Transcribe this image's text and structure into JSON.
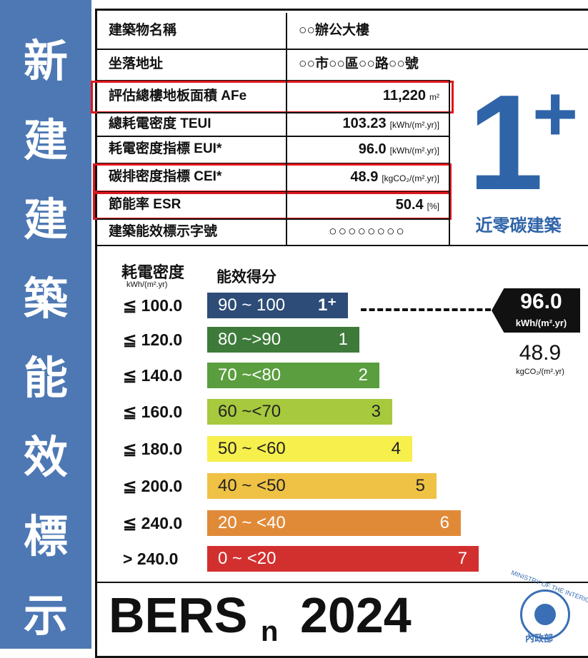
{
  "side_title": [
    "新",
    "建",
    "建",
    "築",
    "能",
    "效",
    "標",
    "示"
  ],
  "table": {
    "rows": [
      {
        "label": "建築物名稱",
        "value": "○○辦公大樓"
      },
      {
        "label": "坐落地址",
        "value": "○○市○○區○○路○○號"
      },
      {
        "label": "評估總樓地板面積 AFe",
        "value": "11,220",
        "unit": "m²",
        "highlight": true
      },
      {
        "label": "總耗電密度 TEUI",
        "value": "103.23",
        "unit": "[kWh/(m².yr)]"
      },
      {
        "label": "耗電密度指標 EUI*",
        "value": "96.0",
        "unit": "[kWh/(m².yr)]"
      },
      {
        "label": "碳排密度指標 CEI*",
        "value": "48.9",
        "unit": "[kgCO₂/(m².yr)]",
        "highlight": true
      },
      {
        "label": "節能率 ESR",
        "value": "50.4",
        "unit": "[%]",
        "highlight": true
      },
      {
        "label": "建築能效標示字號",
        "value": "○○○○○○○○"
      }
    ]
  },
  "badge": {
    "number": "1",
    "sup": "+",
    "caption": "近零碳建築"
  },
  "scale": {
    "eui_header": "耗電密度",
    "eui_unit": "kWh/(m².yr)",
    "score_header": "能效得分",
    "levels": [
      {
        "limit": "≦ 100.0",
        "range": "90 ~ 100",
        "grade": "1⁺",
        "color": "#2d4c77"
      },
      {
        "limit": "≦ 120.0",
        "range": "80 ~>90",
        "grade": "1",
        "color": "#3e7b3a"
      },
      {
        "limit": "≦ 140.0",
        "range": "70 ~<80",
        "grade": "2",
        "color": "#5a9e3f"
      },
      {
        "limit": "≦ 160.0",
        "range": "60 ~<70",
        "grade": "3",
        "color": "#a6c93e"
      },
      {
        "limit": "≦ 180.0",
        "range": "50 ~ <60",
        "grade": "4",
        "color": "#f6ef4c"
      },
      {
        "limit": "≦ 200.0",
        "range": "40 ~ <50",
        "grade": "5",
        "color": "#efc245"
      },
      {
        "limit": "≦ 240.0",
        "range": "20 ~ <40",
        "grade": "6",
        "color": "#e08a38"
      },
      {
        "limit": "> 240.0",
        "range": "0 ~ <20",
        "grade": "7",
        "color": "#d2302f"
      }
    ],
    "pointer": {
      "value": "96.0",
      "unit": "kWh/(m².yr)"
    },
    "carbon": {
      "value": "48.9",
      "unit": "kgCO₂/(m².yr)"
    }
  },
  "footer": {
    "main": "BERS",
    "sub": "n",
    "year": "2024",
    "logo_text": "MINISTRY OF THE INTERIOR",
    "logo_name": "內政部"
  }
}
